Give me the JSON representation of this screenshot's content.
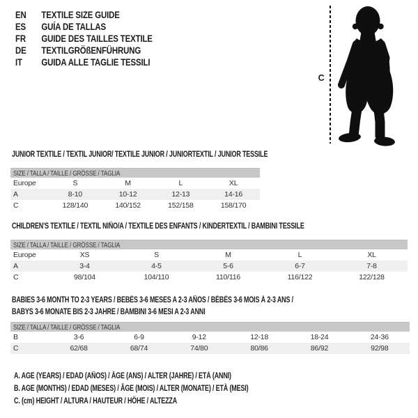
{
  "header": {
    "languages": [
      {
        "code": "EN",
        "title": "TEXTILE SIZE GUIDE"
      },
      {
        "code": "ES",
        "title": "GUÍA DE TALLAS"
      },
      {
        "code": "FR",
        "title": "GUIDE DES TAILLES TEXTILE"
      },
      {
        "code": "DE",
        "title": "TEXTILGRÖßENFÜHRUNG"
      },
      {
        "code": "IT",
        "title": "GUIDA ALLE TAGLIE TESSILI"
      }
    ]
  },
  "figure": {
    "label": "C",
    "icon": "baby-silhouette"
  },
  "tables": [
    {
      "title": "JUNIOR TEXTILE / TEXTIL JUNIOR/ TEXTILE JUNIOR / JUNIORTEXTIL / JUNIOR TESSILE",
      "size_bar": "SIZE / TALLA / TAILLE / GRÖSSE / TAGLIA",
      "rows": [
        [
          "Europe",
          "S",
          "M",
          "L",
          "XL"
        ],
        [
          "A",
          "8-10",
          "10-12",
          "12-13",
          "14-16"
        ],
        [
          "C",
          "128/140",
          "140/152",
          "152/158",
          "158/170"
        ]
      ],
      "shaded_rows": [
        1
      ]
    },
    {
      "title": "CHILDREN'S TEXTILE / TEXTIL NIÑO/A / TEXTILE DES ENFANTS / KINDERTEXTIL / BAMBINI TESSILE",
      "size_bar": "SIZE / TALLA / TAILLE / GRÖSSE / TAGLIA",
      "rows": [
        [
          "Europe",
          "XS",
          "S",
          "M",
          "L",
          "XL"
        ],
        [
          "A",
          "3-4",
          "4-5",
          "5-6",
          "6-7",
          "7-8"
        ],
        [
          "C",
          "98/104",
          "104/110",
          "110/116",
          "116/122",
          "122/128"
        ]
      ],
      "shaded_rows": [
        1
      ]
    },
    {
      "title": "BABIES 3-6 MONTH TO 2-3 YEARS / BEBÉS 3-6 MESES A 2-3 AÑOS / BÉBÉS 3-6 MOIS À 2-3 ANS /",
      "title2": "BABYS 3-6 MONATE BIS 2-3 JAHRE / BAMBINI 3-6 MESI A 2-3 ANNI",
      "size_bar": "SIZE / TALLA / TAILLE / GRÖSSE / TAGLIA",
      "rows": [
        [
          "B",
          "3-6",
          "6-9",
          "9-12",
          "12-18",
          "18-24",
          "24-36"
        ],
        [
          "C",
          "62/68",
          "68/74",
          "74/80",
          "80/86",
          "86/92",
          "92/98"
        ]
      ],
      "shaded_rows": [
        1
      ]
    }
  ],
  "footnotes": [
    "A. AGE (YEARS) / EDAD (AÑOS) / ÂGE (ANS) / ALTER (JAHRE) / ETÀ (ANNI)",
    "B. AGE (MONTHS) / EDAD (MESES) / ÂGE (MOIS) / ALTER (MONATE) / ETÀ (MESI)",
    "C. (cm) HEIGHT / ALTURA / HAUTEUR / HÖHE / ALTEZZA"
  ],
  "colors": {
    "bar_bg": "#c7c7c7",
    "stripe_bg": "#efefef",
    "silhouette": "#0f0f0f"
  }
}
